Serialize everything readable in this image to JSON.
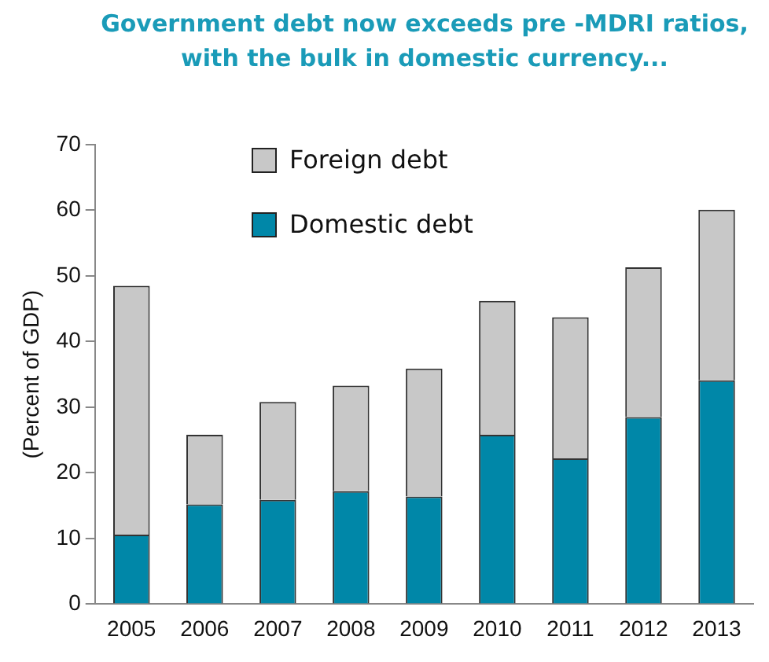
{
  "chart_data": {
    "type": "bar",
    "title": "Government debt now exceeds pre -MDRI ratios, with the bulk in domestic currency...",
    "ylabel": "(Percent of GDP)",
    "categories": [
      "2005",
      "2006",
      "2007",
      "2008",
      "2009",
      "2010",
      "2011",
      "2012",
      "2013"
    ],
    "series": [
      {
        "name": "Domestic debt",
        "color": "#0087a8",
        "values": [
          10.6,
          15.2,
          15.9,
          17.2,
          16.4,
          25.8,
          22.2,
          28.5,
          34.1
        ]
      },
      {
        "name": "Foreign debt",
        "color": "#c8c8c8",
        "values": [
          37.9,
          10.6,
          14.9,
          16.1,
          19.5,
          20.4,
          21.5,
          22.8,
          26.0
        ]
      }
    ],
    "stacked": true,
    "ylim": [
      0,
      70
    ],
    "yticks": [
      0,
      10,
      20,
      30,
      40,
      50,
      60,
      70
    ],
    "grid": false,
    "legend": "top left"
  }
}
